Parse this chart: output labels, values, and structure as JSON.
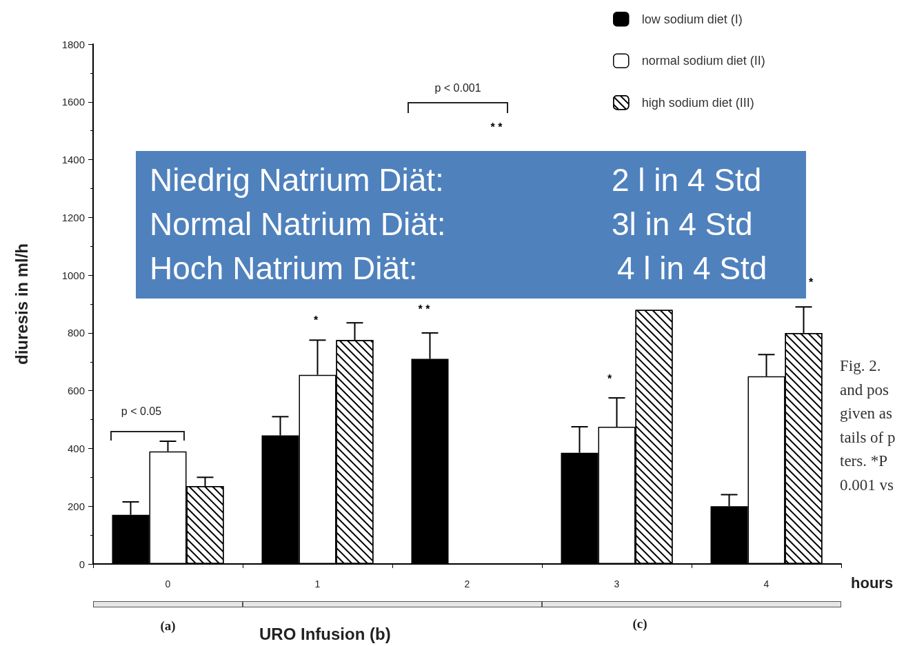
{
  "chart_data": {
    "type": "bar",
    "xlabel": "hours",
    "ylabel": "diuresis in ml/h",
    "categories": [
      "0",
      "1",
      "2",
      "3",
      "4"
    ],
    "series": [
      {
        "name": "low sodium diet (I)",
        "color": "#000000",
        "values": [
          170,
          445,
          710,
          385,
          200
        ],
        "errors": [
          [
            170,
            215
          ],
          [
            445,
            510
          ],
          [
            710,
            800
          ],
          [
            385,
            475
          ],
          [
            200,
            240
          ]
        ]
      },
      {
        "name": "normal sodium diet (II)",
        "color": "#ffffff",
        "values": [
          390,
          655,
          null,
          475,
          650
        ],
        "errors": [
          [
            390,
            425
          ],
          [
            655,
            775
          ],
          null,
          [
            475,
            575
          ],
          [
            650,
            725
          ]
        ]
      },
      {
        "name": "high sodium diet (III)",
        "color": "#ffffff",
        "values": [
          270,
          775,
          null,
          880,
          800
        ],
        "errors": [
          [
            270,
            300
          ],
          [
            775,
            835
          ],
          null,
          null,
          [
            800,
            890
          ]
        ]
      }
    ],
    "ylim": [
      0,
      1800
    ],
    "yticks": [
      0,
      200,
      400,
      600,
      800,
      1000,
      1200,
      1400,
      1600,
      1800
    ],
    "legend": "top right",
    "annotations": [
      "Niedrig Natrium Diät:",
      "2 l in 4 Std",
      "Normal Natrium Diät:",
      "3l in 4 Std",
      "Hoch Natrium Diät:",
      "4 l in 4 Std",
      "p < 0.05",
      "p < 0.001",
      "* *",
      "* *",
      "*",
      "*",
      "*",
      "(a)",
      "URO Infusion (b)",
      "(c)",
      "Fig. 2.",
      "and pos",
      "given as",
      "tails of p",
      "ters. *P",
      "0.001 vs"
    ]
  }
}
